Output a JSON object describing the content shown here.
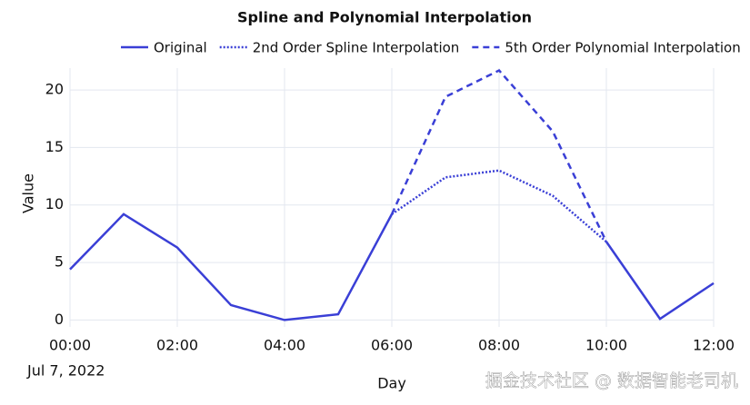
{
  "chart_data": {
    "type": "line",
    "title": "Spline and Polynomial Interpolation",
    "x": [
      "00:00",
      "01:00",
      "02:00",
      "03:00",
      "04:00",
      "05:00",
      "06:00",
      "07:00",
      "08:00",
      "09:00",
      "10:00",
      "11:00",
      "12:00"
    ],
    "xticks": [
      "00:00",
      "02:00",
      "04:00",
      "06:00",
      "08:00",
      "10:00",
      "12:00"
    ],
    "x_date_label": "Jul 7, 2022",
    "xlabel": "Day",
    "ylabel": "Value",
    "ylim": [
      -0.6,
      21.9
    ],
    "yticks": [
      0,
      5,
      10,
      15,
      20
    ],
    "grid": true,
    "series": [
      {
        "name": "Original",
        "color": "#3a3fd6",
        "style": "solid",
        "values": [
          4.4,
          9.2,
          6.3,
          1.3,
          0,
          0.5,
          9.2,
          null,
          null,
          null,
          6.8,
          0.1,
          3.2
        ]
      },
      {
        "name": "2nd Order Spline Interpolation",
        "color": "#3a3fd6",
        "style": "dotted",
        "values": [
          null,
          null,
          null,
          null,
          null,
          null,
          9.2,
          12.4,
          13.0,
          10.8,
          6.8,
          null,
          null
        ]
      },
      {
        "name": "5th Order Polynomial Interpolation",
        "color": "#3a3fd6",
        "style": "dashed",
        "values": [
          null,
          null,
          null,
          null,
          null,
          null,
          9.2,
          19.4,
          21.7,
          16.4,
          6.8,
          null,
          null
        ]
      }
    ],
    "watermark": "掘金技术社区 @ 数据智能老司机"
  }
}
